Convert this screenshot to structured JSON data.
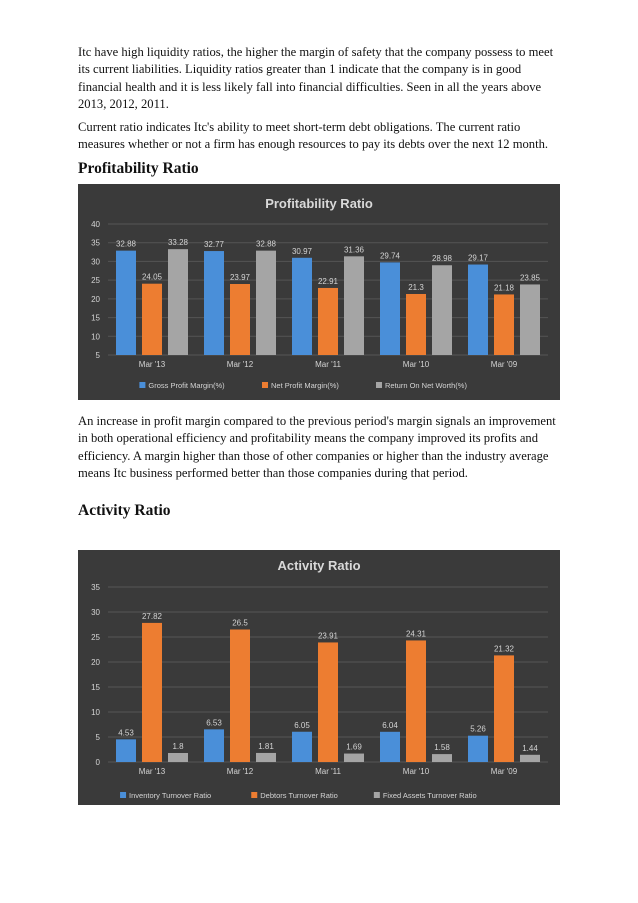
{
  "paragraphs": {
    "p1": "Itc have high liquidity ratios, the higher the margin of safety that the company possess to meet its current liabilities. Liquidity ratios greater than 1 indicate that the company is in good financial health and it is less likely fall into financial difficulties. Seen in all the years above 2013, 2012, 2011.",
    "p2": "Current ratio indicates Itc's ability to meet short-term debt obligations. The current ratio measures whether or not a firm has enough resources to pay its debts over the next 12 month.",
    "p3": "An increase in profit margin compared to the previous period's margin signals an improvement in both operational efficiency and profitability means the company improved its profits and efficiency. A margin higher than those of other companies or higher than the industry average means Itc business performed better than those companies during that period."
  },
  "headings": {
    "profitability": "Profitability Ratio",
    "activity": "Activity Ratio"
  },
  "chart_data": [
    {
      "type": "bar",
      "title": "Profitability Ratio",
      "categories": [
        "Mar '13",
        "Mar '12",
        "Mar '11",
        "Mar '10",
        "Mar '09"
      ],
      "series": [
        {
          "name": "Gross Profit Margin(%)",
          "values": [
            32.88,
            32.77,
            30.97,
            29.74,
            29.17
          ],
          "color": "#4a8fd9"
        },
        {
          "name": "Net Profit Margin(%)",
          "values": [
            24.05,
            23.97,
            22.91,
            21.3,
            21.18
          ],
          "color": "#ed7d31"
        },
        {
          "name": "Return On Net Worth(%)",
          "values": [
            33.28,
            32.88,
            31.36,
            28.98,
            23.85
          ],
          "color": "#a5a5a5"
        }
      ],
      "yticks": [
        "5",
        "10",
        "15",
        "20",
        "25",
        "30",
        "35",
        "40"
      ],
      "ylim": [
        5,
        40
      ],
      "grid": true,
      "legend": "bottom"
    },
    {
      "type": "bar",
      "title": "Activity Ratio",
      "categories": [
        "Mar '13",
        "Mar '12",
        "Mar '11",
        "Mar '10",
        "Mar '09"
      ],
      "series": [
        {
          "name": "Inventory Turnover Ratio",
          "values": [
            4.53,
            6.53,
            6.05,
            6.04,
            5.26
          ],
          "color": "#4a8fd9"
        },
        {
          "name": "Debtors Turnover Ratio",
          "values": [
            27.82,
            26.5,
            23.91,
            24.31,
            21.32
          ],
          "color": "#ed7d31"
        },
        {
          "name": "Fixed Assets Turnover Ratio",
          "values": [
            1.8,
            1.81,
            1.69,
            1.58,
            1.44
          ],
          "color": "#a5a5a5"
        }
      ],
      "yticks": [
        "0",
        "5",
        "10",
        "15",
        "20",
        "25",
        "30",
        "35"
      ],
      "ylim": [
        0,
        35
      ],
      "grid": true,
      "legend": "bottom"
    }
  ]
}
